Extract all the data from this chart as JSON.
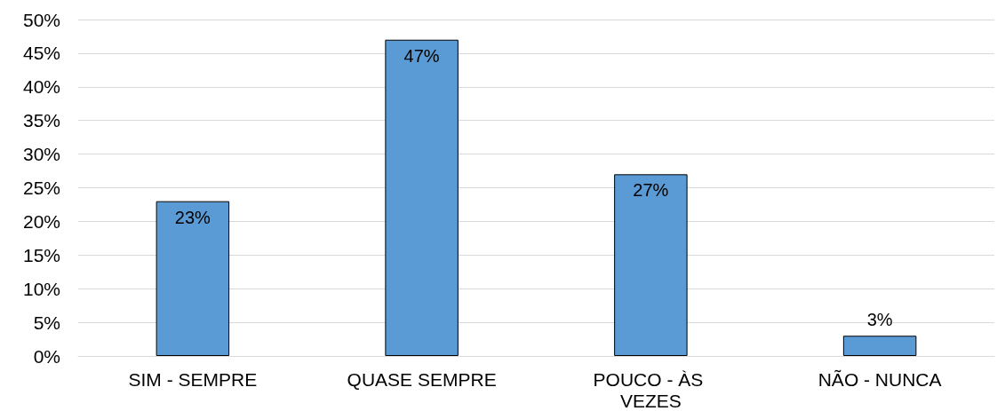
{
  "chart_data": {
    "type": "bar",
    "categories": [
      "SIM - SEMPRE",
      "QUASE SEMPRE",
      "POUCO - ÀS VEZES",
      "NÃO - NUNCA"
    ],
    "values": [
      23,
      47,
      27,
      3
    ],
    "value_labels": [
      "23%",
      "47%",
      "27%",
      "3%"
    ],
    "color": "#5b9bd5",
    "ylim": [
      0,
      50
    ],
    "yticks": [
      {
        "value": 0,
        "label": "0%"
      },
      {
        "value": 5,
        "label": "5%"
      },
      {
        "value": 10,
        "label": "10%"
      },
      {
        "value": 15,
        "label": "15%"
      },
      {
        "value": 20,
        "label": "20%"
      },
      {
        "value": 25,
        "label": "25%"
      },
      {
        "value": 30,
        "label": "30%"
      },
      {
        "value": 35,
        "label": "35%"
      },
      {
        "value": 40,
        "label": "40%"
      },
      {
        "value": 45,
        "label": "45%"
      },
      {
        "value": 50,
        "label": "50%"
      }
    ],
    "grid": "y"
  }
}
